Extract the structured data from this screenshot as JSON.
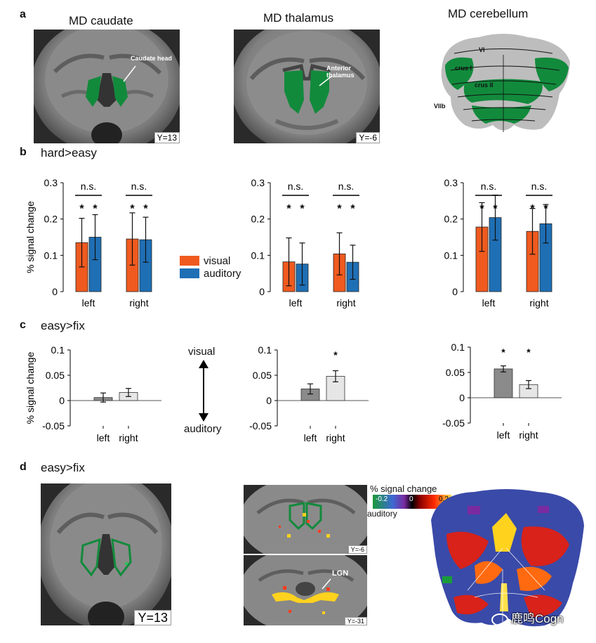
{
  "panels": {
    "a": {
      "letter": "a",
      "titles": [
        "MD caudate",
        "MD thalamus",
        "MD cerebellum"
      ],
      "labels": {
        "caudate_head": "Caudate head",
        "anterior_thalamus": "Anterior thalamus",
        "lobules": [
          "VI",
          "crus I",
          "crus II",
          "VIIb"
        ]
      },
      "coords": [
        "Y=13",
        "Y=-6"
      ]
    },
    "b": {
      "letter": "b",
      "title": "hard>easy",
      "ylabel": "% signal change"
    },
    "c": {
      "letter": "c",
      "title": "easy>fix",
      "ylabel": "% signal change",
      "arrow_top": "visual",
      "arrow_bottom": "auditory"
    },
    "d": {
      "letter": "d",
      "title": "easy>fix",
      "coords": [
        "Y=13",
        "Y=-6",
        "Y=-31"
      ],
      "lgn": "LGN",
      "colorbar": {
        "title": "% signal change",
        "ticks": [
          "-0.2",
          "0",
          "0.2"
        ],
        "left": "auditory",
        "right": "visual"
      }
    }
  },
  "legend": [
    {
      "name": "visual",
      "color": "#f05a1e"
    },
    {
      "name": "auditory",
      "color": "#1f6fb5"
    }
  ],
  "watermark": "鹿鸣Cogn",
  "chart_data": [
    {
      "type": "bar",
      "panel": "b-caudate",
      "categories": [
        "left",
        "right"
      ],
      "series": [
        {
          "name": "visual",
          "values": [
            0.135,
            0.145
          ],
          "err": [
            0.067,
            0.072
          ]
        },
        {
          "name": "auditory",
          "values": [
            0.15,
            0.143
          ],
          "err": [
            0.062,
            0.062
          ]
        }
      ],
      "ylim": [
        0,
        0.3
      ],
      "yticks": [
        "0",
        "0.1",
        "0.2",
        "0.3"
      ],
      "sig": [
        "n.s.",
        "n.s."
      ],
      "stars": [
        true,
        true,
        true,
        true
      ]
    },
    {
      "type": "bar",
      "panel": "b-thalamus",
      "categories": [
        "left",
        "right"
      ],
      "series": [
        {
          "name": "visual",
          "values": [
            0.082,
            0.104
          ],
          "err": [
            0.066,
            0.058
          ]
        },
        {
          "name": "auditory",
          "values": [
            0.076,
            0.081
          ],
          "err": [
            0.058,
            0.047
          ]
        }
      ],
      "ylim": [
        0,
        0.3
      ],
      "yticks": [
        "0",
        "0.1",
        "0.2",
        "0.3"
      ],
      "sig": [
        "n.s.",
        "n.s."
      ],
      "stars": [
        true,
        true,
        true,
        true
      ]
    },
    {
      "type": "bar",
      "panel": "b-cerebellum",
      "categories": [
        "left",
        "right"
      ],
      "series": [
        {
          "name": "visual",
          "values": [
            0.178,
            0.166
          ],
          "err": [
            0.067,
            0.063
          ]
        },
        {
          "name": "auditory",
          "values": [
            0.204,
            0.187
          ],
          "err": [
            0.062,
            0.053
          ]
        }
      ],
      "ylim": [
        0,
        0.3
      ],
      "yticks": [
        "0",
        "0.1",
        "0.2",
        "0.3"
      ],
      "sig": [
        "n.s.",
        "n.s."
      ],
      "stars": [
        true,
        true,
        true,
        true
      ]
    },
    {
      "type": "bar",
      "panel": "c-caudate",
      "categories": [
        "left",
        "right"
      ],
      "values": [
        0.006,
        0.016
      ],
      "err": [
        0.009,
        0.008
      ],
      "colors": [
        "#8a8a8a",
        "#e6e6e6"
      ],
      "ylim": [
        -0.05,
        0.1
      ],
      "yticks": [
        "-0.05",
        "0",
        "0.05",
        "0.1"
      ],
      "stars": [
        false,
        false
      ]
    },
    {
      "type": "bar",
      "panel": "c-thalamus",
      "categories": [
        "left",
        "right"
      ],
      "values": [
        0.023,
        0.048
      ],
      "err": [
        0.01,
        0.011
      ],
      "colors": [
        "#8a8a8a",
        "#e6e6e6"
      ],
      "ylim": [
        -0.05,
        0.1
      ],
      "yticks": [
        "-0.05",
        "0",
        "0.05",
        "0.1"
      ],
      "stars": [
        false,
        true
      ]
    },
    {
      "type": "bar",
      "panel": "c-cerebellum",
      "categories": [
        "left",
        "right"
      ],
      "values": [
        0.057,
        0.026
      ],
      "err": [
        0.006,
        0.008
      ],
      "colors": [
        "#8a8a8a",
        "#e6e6e6"
      ],
      "ylim": [
        -0.05,
        0.1
      ],
      "yticks": [
        "-0.05",
        "0",
        "0.05",
        "0.1"
      ],
      "stars": [
        true,
        true
      ]
    }
  ]
}
